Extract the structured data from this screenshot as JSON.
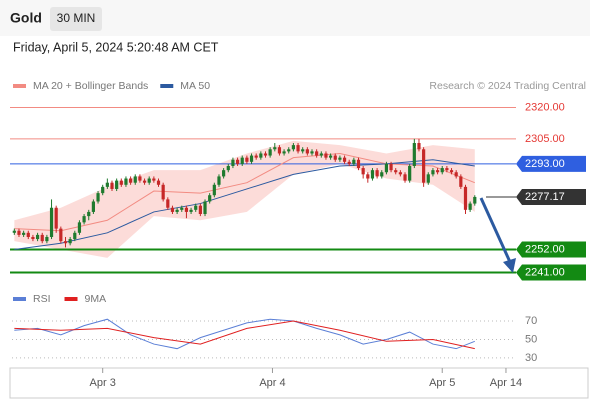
{
  "header": {
    "title": "Gold",
    "interval": "30 MIN",
    "timestamp": "Friday, April 5, 2024 5:20:48 AM CET"
  },
  "chart_data": [
    {
      "type": "candlestick",
      "legend": [
        {
          "name": "MA 20 + Bollinger Bands",
          "color": "#f28b82"
        },
        {
          "name": "MA 50",
          "color": "#2c5aa0"
        }
      ],
      "source": "Research © 2024 Trading Central",
      "up_color": "#1f7a2e",
      "down_color": "#c62828",
      "xlim": [
        -0.5,
        107
      ],
      "xticks": [
        {
          "value": 19,
          "label": "Apr 3"
        },
        {
          "value": 55.5,
          "label": "Apr 4"
        },
        {
          "value": 92,
          "label": "Apr 5"
        },
        {
          "value": 105.7,
          "label": "Apr 14"
        }
      ],
      "ylim": [
        2235,
        2326
      ],
      "ohlc": [
        [
          2260,
          2262,
          2259,
          2261
        ],
        [
          2261,
          2262,
          2258,
          2259
        ],
        [
          2259,
          2261,
          2258,
          2260
        ],
        [
          2260,
          2261,
          2257,
          2258
        ],
        [
          2258,
          2259,
          2256,
          2257
        ],
        [
          2257,
          2260,
          2256,
          2259
        ],
        [
          2259,
          2260,
          2255,
          2256
        ],
        [
          2256,
          2259,
          2255,
          2258
        ],
        [
          2258,
          2276,
          2257,
          2272
        ],
        [
          2272,
          2273,
          2260,
          2262
        ],
        [
          2262,
          2263,
          2255,
          2256
        ],
        [
          2256,
          2258,
          2253,
          2255
        ],
        [
          2255,
          2258,
          2254,
          2257
        ],
        [
          2257,
          2261,
          2256,
          2260
        ],
        [
          2260,
          2266,
          2259,
          2265
        ],
        [
          2265,
          2269,
          2264,
          2268
        ],
        [
          2268,
          2271,
          2266,
          2270
        ],
        [
          2270,
          2276,
          2269,
          2275
        ],
        [
          2275,
          2280,
          2274,
          2279
        ],
        [
          2279,
          2283,
          2278,
          2282
        ],
        [
          2282,
          2286,
          2281,
          2284
        ],
        [
          2284,
          2285,
          2280,
          2281
        ],
        [
          2281,
          2286,
          2280,
          2285
        ],
        [
          2285,
          2286,
          2282,
          2283
        ],
        [
          2283,
          2287,
          2282,
          2286
        ],
        [
          2286,
          2287,
          2283,
          2284
        ],
        [
          2284,
          2288,
          2283,
          2287
        ],
        [
          2287,
          2288,
          2284,
          2285
        ],
        [
          2285,
          2286,
          2283,
          2284
        ],
        [
          2284,
          2287,
          2283,
          2286
        ],
        [
          2286,
          2287,
          2284,
          2285
        ],
        [
          2285,
          2286,
          2282,
          2283
        ],
        [
          2283,
          2284,
          2275,
          2276
        ],
        [
          2276,
          2277,
          2271,
          2272
        ],
        [
          2272,
          2273,
          2269,
          2270
        ],
        [
          2270,
          2272,
          2269,
          2271
        ],
        [
          2271,
          2273,
          2270,
          2272
        ],
        [
          2272,
          2273,
          2267,
          2270
        ],
        [
          2270,
          2272,
          2269,
          2271
        ],
        [
          2271,
          2274,
          2270,
          2273
        ],
        [
          2273,
          2274,
          2268,
          2269
        ],
        [
          2269,
          2276,
          2268,
          2275
        ],
        [
          2275,
          2279,
          2274,
          2278
        ],
        [
          2278,
          2284,
          2277,
          2283
        ],
        [
          2283,
          2288,
          2282,
          2287
        ],
        [
          2287,
          2291,
          2286,
          2290
        ],
        [
          2290,
          2293,
          2289,
          2292
        ],
        [
          2292,
          2296,
          2291,
          2295
        ],
        [
          2295,
          2296,
          2292,
          2293
        ],
        [
          2293,
          2297,
          2292,
          2296
        ],
        [
          2296,
          2297,
          2293,
          2294
        ],
        [
          2294,
          2298,
          2293,
          2297
        ],
        [
          2297,
          2298,
          2295,
          2296
        ],
        [
          2296,
          2299,
          2295,
          2298
        ],
        [
          2298,
          2299,
          2296,
          2297
        ],
        [
          2297,
          2301,
          2296,
          2300
        ],
        [
          2300,
          2303,
          2299,
          2301
        ],
        [
          2301,
          2302,
          2297,
          2298
        ],
        [
          2298,
          2300,
          2297,
          2299
        ],
        [
          2299,
          2301,
          2298,
          2300
        ],
        [
          2300,
          2303,
          2299,
          2302
        ],
        [
          2302,
          2303,
          2298,
          2299
        ],
        [
          2299,
          2301,
          2298,
          2300
        ],
        [
          2300,
          2301,
          2297,
          2298
        ],
        [
          2298,
          2300,
          2297,
          2299
        ],
        [
          2299,
          2300,
          2296,
          2297
        ],
        [
          2297,
          2299,
          2296,
          2298
        ],
        [
          2298,
          2299,
          2295,
          2296
        ],
        [
          2296,
          2298,
          2295,
          2297
        ],
        [
          2297,
          2298,
          2294,
          2295
        ],
        [
          2295,
          2297,
          2294,
          2296
        ],
        [
          2296,
          2297,
          2293,
          2294
        ],
        [
          2294,
          2295,
          2292,
          2293
        ],
        [
          2293,
          2296,
          2292,
          2295
        ],
        [
          2295,
          2296,
          2290,
          2291
        ],
        [
          2291,
          2292,
          2286,
          2288
        ],
        [
          2288,
          2289,
          2284,
          2286
        ],
        [
          2286,
          2291,
          2285,
          2290
        ],
        [
          2290,
          2291,
          2286,
          2287
        ],
        [
          2287,
          2290,
          2286,
          2289
        ],
        [
          2289,
          2294,
          2288,
          2293
        ],
        [
          2293,
          2294,
          2289,
          2290
        ],
        [
          2290,
          2291,
          2288,
          2289
        ],
        [
          2289,
          2290,
          2287,
          2288
        ],
        [
          2288,
          2289,
          2284,
          2285
        ],
        [
          2285,
          2293,
          2284,
          2292
        ],
        [
          2292,
          2305,
          2291,
          2303
        ],
        [
          2303,
          2305,
          2299,
          2300
        ],
        [
          2300,
          2301,
          2282,
          2284
        ],
        [
          2284,
          2289,
          2283,
          2288
        ],
        [
          2288,
          2291,
          2287,
          2290
        ],
        [
          2290,
          2291,
          2288,
          2289
        ],
        [
          2289,
          2292,
          2288,
          2291
        ],
        [
          2291,
          2292,
          2289,
          2290
        ],
        [
          2290,
          2291,
          2288,
          2289
        ],
        [
          2289,
          2290,
          2286,
          2287
        ],
        [
          2287,
          2288,
          2281,
          2282
        ],
        [
          2282,
          2283,
          2269,
          2271
        ],
        [
          2271,
          2275,
          2270,
          2274
        ],
        [
          2274,
          2278,
          2273,
          2277.17
        ]
      ],
      "bands": {
        "x": [
          0,
          10,
          20,
          30,
          40,
          50,
          60,
          70,
          80,
          90,
          99
        ],
        "upper": [
          2266,
          2272,
          2282,
          2290,
          2290,
          2298,
          2304,
          2302,
          2298,
          2302,
          2300
        ],
        "lower": [
          2256,
          2252,
          2248,
          2268,
          2266,
          2270,
          2288,
          2293,
          2286,
          2283,
          2270
        ],
        "color": "#fbd3d0"
      },
      "series": [
        {
          "name": "MA 20",
          "color": "#f28b82",
          "x": [
            0,
            10,
            20,
            30,
            40,
            50,
            60,
            70,
            80,
            90,
            99
          ],
          "values": [
            2262,
            2261,
            2266,
            2280,
            2279,
            2284,
            2296,
            2298,
            2293,
            2292,
            2284
          ]
        },
        {
          "name": "MA 50",
          "color": "#2c5aa0",
          "x": [
            0,
            10,
            20,
            30,
            40,
            50,
            60,
            70,
            80,
            90,
            99
          ],
          "values": [
            2252,
            2255,
            2260,
            2270,
            2274,
            2281,
            2288,
            2292,
            2293,
            2295,
            2292
          ]
        }
      ],
      "levels": [
        {
          "value": 2320,
          "label": "2320.00",
          "color": "#f28b82",
          "style": "text"
        },
        {
          "value": 2305,
          "label": "2305.00",
          "color": "#f28b82",
          "style": "text"
        },
        {
          "value": 2293,
          "label": "2293.00",
          "color": "#2f5fe0",
          "style": "box"
        },
        {
          "value": 2277.17,
          "label": "2277.17",
          "color": "#333333",
          "style": "box"
        },
        {
          "value": 2252,
          "label": "2252.00",
          "color": "#138a13",
          "style": "box"
        },
        {
          "value": 2241,
          "label": "2241.00",
          "color": "#138a13",
          "style": "box"
        }
      ]
    },
    {
      "type": "line",
      "ylim": [
        19,
        82
      ],
      "yticks": [
        30,
        50,
        70
      ],
      "series": [
        {
          "name": "RSI",
          "color": "#5b7fd6",
          "x": [
            0,
            5,
            10,
            15,
            20,
            25,
            30,
            35,
            40,
            45,
            50,
            55,
            60,
            65,
            70,
            75,
            80,
            85,
            90,
            95,
            99
          ],
          "values": [
            60,
            62,
            55,
            65,
            72,
            55,
            45,
            40,
            52,
            60,
            68,
            72,
            70,
            62,
            55,
            45,
            50,
            58,
            45,
            40,
            48
          ]
        },
        {
          "name": "9MA",
          "color": "#e02020",
          "x": [
            0,
            10,
            20,
            30,
            40,
            50,
            60,
            70,
            80,
            90,
            99
          ],
          "values": [
            62,
            60,
            62,
            52,
            45,
            62,
            70,
            60,
            48,
            50,
            40
          ]
        }
      ]
    }
  ]
}
